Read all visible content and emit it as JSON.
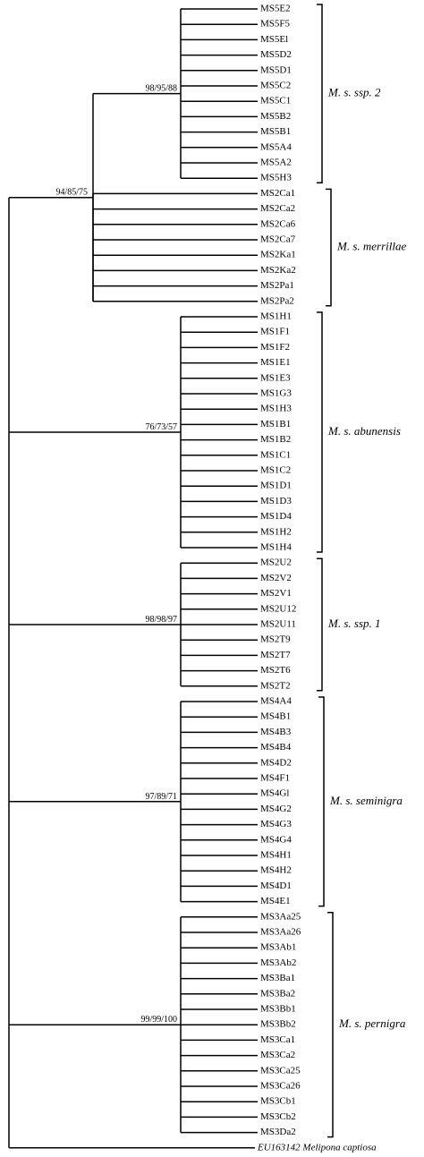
{
  "clades": [
    {
      "support": "98/95/88",
      "group": "M. s. ssp. 2",
      "leaves": [
        "MS5E2",
        "MS5F5",
        "MS5El",
        "MS5D2",
        "MS5D1",
        "MS5C2",
        "MS5C1",
        "MS5B2",
        "MS5B1",
        "MS5A4",
        "MS5A2",
        "MS5H3"
      ]
    },
    {
      "group": "M. s. merrillae",
      "leaves": [
        "MS2Ca1",
        "MS2Ca2",
        "MS2Ca6",
        "MS2Ca7",
        "MS2Ka1",
        "MS2Ka2",
        "MS2Pa1",
        "MS2Pa2"
      ]
    },
    {
      "support": "76/73/57",
      "group": "M. s. abunensis",
      "leaves": [
        "MS1H1",
        "MS1F1",
        "MS1F2",
        "MS1E1",
        "MS1E3",
        "MS1G3",
        "MS1H3",
        "MS1B1",
        "MS1B2",
        "MS1C1",
        "MS1C2",
        "MS1D1",
        "MS1D3",
        "MS1D4",
        "MS1H2",
        "MS1H4"
      ]
    },
    {
      "support": "98/98/97",
      "group": "M. s. ssp. 1",
      "leaves": [
        "MS2U2",
        "MS2V2",
        "MS2V1",
        "MS2U12",
        "MS2U11",
        "MS2T9",
        "MS2T7",
        "MS2T6",
        "MS2T2"
      ]
    },
    {
      "support": "97/89/71",
      "group": "M. s. seminigra",
      "leaves": [
        "MS4A4",
        "MS4B1",
        "MS4B3",
        "MS4B4",
        "MS4D2",
        "MS4F1",
        "MS4Gl",
        "MS4G2",
        "MS4G3",
        "MS4G4",
        "MS4H1",
        "MS4H2",
        "MS4D1",
        "MS4E1"
      ]
    },
    {
      "support": "99/99/100",
      "group": "M. s. pernigra",
      "leaves": [
        "MS3Aa25",
        "MS3Aa26",
        "MS3Ab1",
        "MS3Ab2",
        "MS3Ba1",
        "MS3Ba2",
        "MS3Bb1",
        "MS3Bb2",
        "MS3Ca1",
        "MS3Ca2",
        "MS3Ca25",
        "MS3Ca26",
        "MS3Cb1",
        "MS3Cb2",
        "MS3Da2"
      ]
    }
  ],
  "nested_support": "94/85/75",
  "outgroup": "EU163142 Melipona captiosa"
}
